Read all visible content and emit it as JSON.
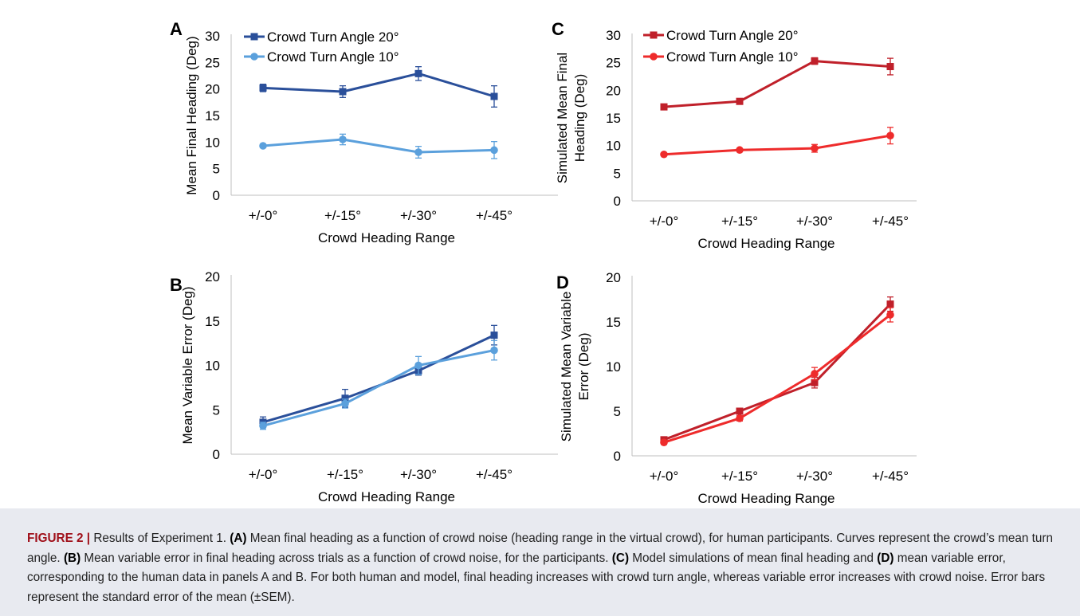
{
  "chart_data": [
    {
      "panel": "A",
      "type": "line",
      "categories": [
        "+/-0°",
        "+/-15°",
        "+/-30°",
        "+/-45°"
      ],
      "xlabel": "Crowd Heading Range",
      "ylabel": "Mean Final Heading  (Deg)",
      "ylim": [
        0,
        30
      ],
      "yticks": [
        0,
        5,
        10,
        15,
        20,
        25,
        30
      ],
      "legend": "top-left",
      "series": [
        {
          "name": "Crowd Turn Angle 20°",
          "marker": "square",
          "color": "#2a4f9a",
          "values": [
            20.2,
            19.5,
            22.9,
            18.6
          ],
          "err": [
            0.7,
            1.1,
            1.3,
            2.0
          ]
        },
        {
          "name": "Crowd Turn Angle 10°",
          "marker": "circle",
          "color": "#5ba0dc",
          "values": [
            9.3,
            10.5,
            8.1,
            8.5
          ],
          "err": [
            0.3,
            1.0,
            1.1,
            1.6
          ]
        }
      ]
    },
    {
      "panel": "B",
      "type": "line",
      "categories": [
        "+/-0°",
        "+/-15°",
        "+/-30°",
        "+/-45°"
      ],
      "xlabel": "Crowd Heading Range",
      "ylabel": "Mean Variable Error (Deg)",
      "ylim": [
        0,
        20
      ],
      "yticks": [
        0,
        5,
        10,
        15,
        20
      ],
      "legend": "none",
      "series": [
        {
          "name": "Crowd Turn Angle 20°",
          "marker": "square",
          "color": "#2a4f9a",
          "values": [
            3.6,
            6.3,
            9.4,
            13.4
          ],
          "err": [
            0.6,
            1.0,
            0.5,
            1.1
          ]
        },
        {
          "name": "Crowd Turn Angle 10°",
          "marker": "circle",
          "color": "#5ba0dc",
          "values": [
            3.2,
            5.7,
            10.0,
            11.7
          ],
          "err": [
            0.4,
            0.5,
            1.0,
            1.1
          ]
        }
      ]
    },
    {
      "panel": "C",
      "type": "line",
      "categories": [
        "+/-0°",
        "+/-15°",
        "+/-30°",
        "+/-45°"
      ],
      "xlabel": "Crowd Heading Range",
      "ylabel": [
        "Simulated Mean Final",
        "Heading (Deg)"
      ],
      "ylim": [
        0,
        30
      ],
      "yticks": [
        0,
        5,
        10,
        15,
        20,
        25,
        30
      ],
      "legend": "top-left",
      "series": [
        {
          "name": "Crowd Turn Angle 20°",
          "marker": "square",
          "color": "#c0202a",
          "values": [
            17.0,
            18.0,
            25.3,
            24.3
          ],
          "err": [
            0.2,
            0.3,
            0.6,
            1.5
          ]
        },
        {
          "name": "Crowd Turn Angle 10°",
          "marker": "circle",
          "color": "#ee2b2b",
          "values": [
            8.4,
            9.2,
            9.5,
            11.8
          ],
          "err": [
            0.2,
            0.3,
            0.7,
            1.5
          ]
        }
      ]
    },
    {
      "panel": "D",
      "type": "line",
      "categories": [
        "+/-0°",
        "+/-15°",
        "+/-30°",
        "+/-45°"
      ],
      "xlabel": "Crowd Heading Range",
      "ylabel": [
        "Simulated Mean Variable",
        "Error (Deg)"
      ],
      "ylim": [
        0,
        20
      ],
      "yticks": [
        0,
        5,
        10,
        15,
        20
      ],
      "legend": "none",
      "series": [
        {
          "name": "Crowd Turn Angle 20°",
          "marker": "square",
          "color": "#c0202a",
          "values": [
            1.8,
            5.0,
            8.2,
            17.0
          ],
          "err": [
            0.2,
            0.2,
            0.6,
            0.8
          ]
        },
        {
          "name": "Crowd Turn Angle 10°",
          "marker": "circle",
          "color": "#ee2b2b",
          "values": [
            1.5,
            4.2,
            9.2,
            15.8
          ],
          "err": [
            0.2,
            0.3,
            0.7,
            0.8
          ]
        }
      ]
    }
  ],
  "caption": {
    "figure_label": "FIGURE 2 |",
    "parts": [
      {
        "bold": false,
        "text": " Results of Experiment 1. "
      },
      {
        "bold": true,
        "text": "(A)"
      },
      {
        "bold": false,
        "text": " Mean final heading as a function of crowd noise (heading range in the virtual crowd), for human participants. Curves represent the crowd’s mean turn angle. "
      },
      {
        "bold": true,
        "text": "(B)"
      },
      {
        "bold": false,
        "text": " Mean variable error in final heading across trials as a function of crowd noise, for the participants. "
      },
      {
        "bold": true,
        "text": "(C)"
      },
      {
        "bold": false,
        "text": " Model simulations of mean final heading and "
      },
      {
        "bold": true,
        "text": "(D)"
      },
      {
        "bold": false,
        "text": " mean variable error, corresponding to the human data in panels A and B. For both human and model, final heading increases with crowd turn angle, whereas variable error increases with crowd noise. Error bars represent the standard error of the mean (±SEM)."
      }
    ]
  }
}
